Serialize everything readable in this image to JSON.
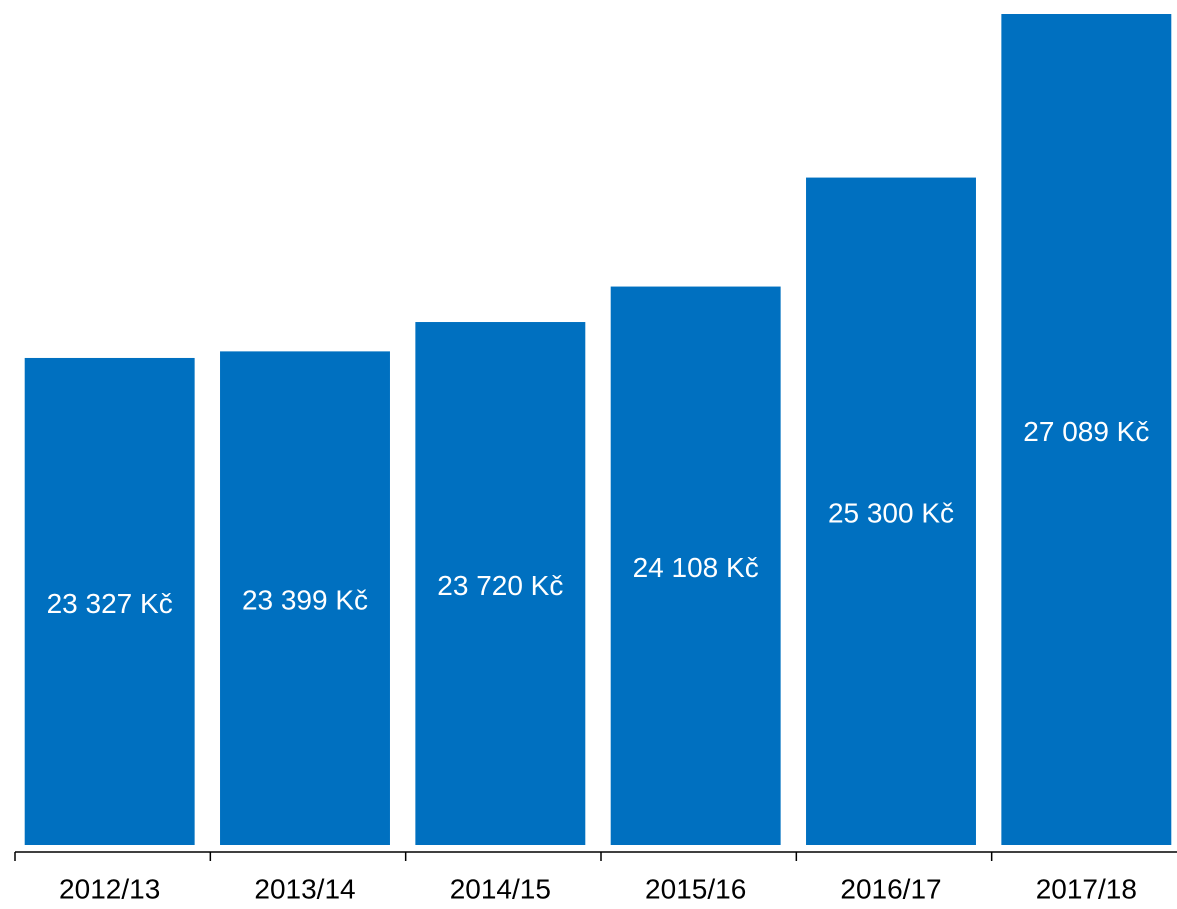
{
  "chart_data": {
    "type": "bar",
    "categories": [
      "2012/13",
      "2013/14",
      "2014/15",
      "2015/16",
      "2016/17",
      "2017/18"
    ],
    "values": [
      23327,
      23399,
      23720,
      24108,
      25300,
      27089
    ],
    "value_labels": [
      "23 327 Kč",
      "23 399 Kč",
      "23 720 Kč",
      "24 108 Kč",
      "25 300 Kč",
      "27 089 Kč"
    ],
    "color": "#0070c0",
    "ylim": [
      18000,
      27100
    ]
  }
}
